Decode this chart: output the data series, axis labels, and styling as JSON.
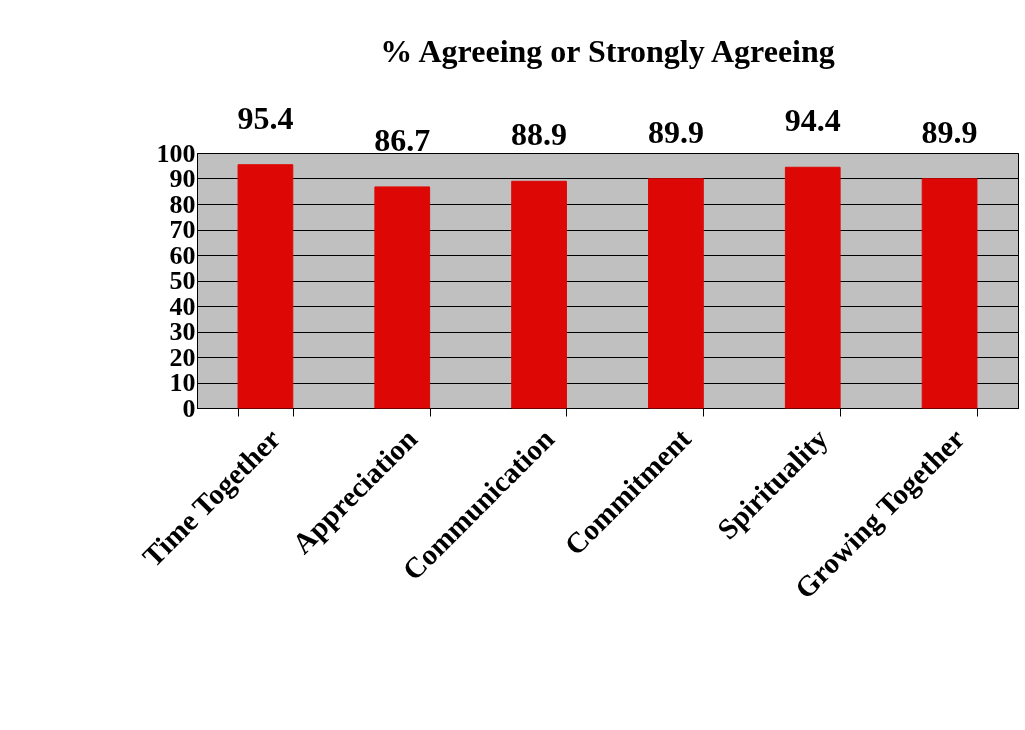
{
  "chart_data": {
    "type": "bar",
    "title": "% Agreeing or Strongly Agreeing",
    "categories": [
      "Time Together",
      "Appreciation",
      "Communication",
      "Commitment",
      "Spirituality",
      "Growing Together"
    ],
    "values": [
      95.4,
      86.7,
      88.9,
      89.9,
      94.4,
      89.9
    ],
    "color": "#dd0806",
    "ylim": [
      0,
      100
    ],
    "yticks": [
      0,
      10,
      20,
      30,
      40,
      50,
      60,
      70,
      80,
      90,
      100
    ],
    "grid": "y",
    "data_labels": true
  }
}
